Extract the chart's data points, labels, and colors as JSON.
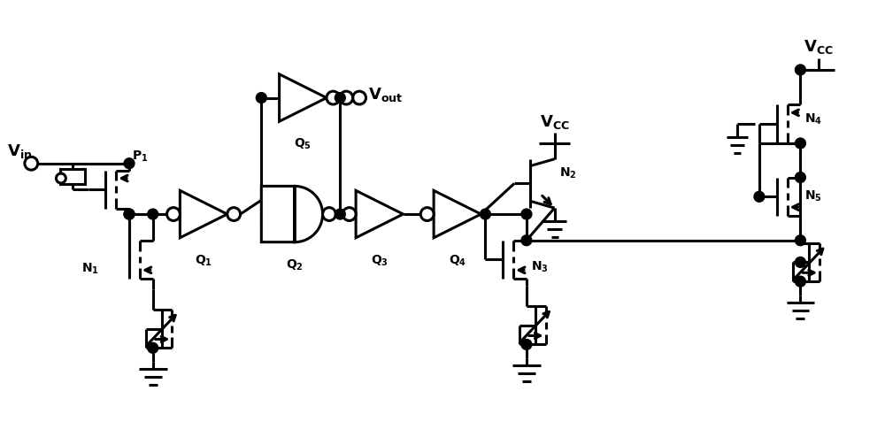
{
  "bg_color": "#ffffff",
  "line_color": "#000000",
  "lw": 2.2,
  "figsize": [
    10.0,
    4.94
  ],
  "dpi": 100
}
